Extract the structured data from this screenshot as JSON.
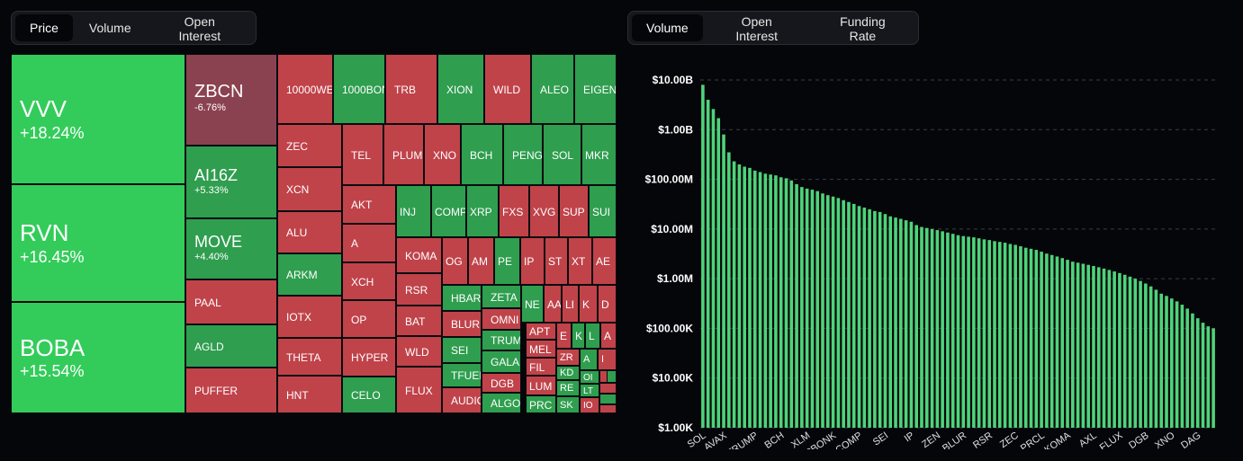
{
  "left_tabs": [
    {
      "label": "Price",
      "active": true
    },
    {
      "label": "Volume",
      "active": false
    },
    {
      "label": "Open Interest",
      "active": false
    }
  ],
  "right_tabs": [
    {
      "label": "Volume",
      "active": true
    },
    {
      "label": "Open Interest",
      "active": false
    },
    {
      "label": "Funding Rate",
      "active": false
    }
  ],
  "colors": {
    "up_bright": "#33cc5a",
    "up": "#2f9e4f",
    "down": "#c0434a",
    "down_muted": "#8b4250",
    "bar": "#4fd37a"
  },
  "chart_data": [
    {
      "type": "treemap",
      "cells": [
        {
          "symbol": "VVV",
          "change": "+18.24%",
          "dir": "up_bright"
        },
        {
          "symbol": "RVN",
          "change": "+16.45%",
          "dir": "up_bright"
        },
        {
          "symbol": "BOBA",
          "change": "+15.54%",
          "dir": "up_bright"
        },
        {
          "symbol": "ZBCN",
          "change": "-6.76%",
          "dir": "down_muted"
        },
        {
          "symbol": "AI16Z",
          "change": "+5.33%",
          "dir": "up"
        },
        {
          "symbol": "MOVE",
          "change": "+4.40%",
          "dir": "up"
        },
        {
          "symbol": "PAAL",
          "dir": "down"
        },
        {
          "symbol": "AGLD",
          "dir": "up"
        },
        {
          "symbol": "PUFFER",
          "dir": "down"
        },
        {
          "symbol": "10000WE",
          "dir": "down"
        },
        {
          "symbol": "1000BON",
          "dir": "up"
        },
        {
          "symbol": "TRB",
          "dir": "down"
        },
        {
          "symbol": "XION",
          "dir": "up"
        },
        {
          "symbol": "WILD",
          "dir": "down"
        },
        {
          "symbol": "ALEO",
          "dir": "up"
        },
        {
          "symbol": "EIGEN",
          "dir": "up"
        },
        {
          "symbol": "ZEC",
          "dir": "down"
        },
        {
          "symbol": "XCN",
          "dir": "down"
        },
        {
          "symbol": "ALU",
          "dir": "down"
        },
        {
          "symbol": "ARKM",
          "dir": "up"
        },
        {
          "symbol": "IOTX",
          "dir": "down"
        },
        {
          "symbol": "THETA",
          "dir": "down"
        },
        {
          "symbol": "HNT",
          "dir": "down"
        },
        {
          "symbol": "TEL",
          "dir": "down"
        },
        {
          "symbol": "PLUME",
          "dir": "down"
        },
        {
          "symbol": "XNO",
          "dir": "down"
        },
        {
          "symbol": "BCH",
          "dir": "up"
        },
        {
          "symbol": "PENG",
          "dir": "up"
        },
        {
          "symbol": "SOL",
          "dir": "up"
        },
        {
          "symbol": "MKR",
          "dir": "up"
        },
        {
          "symbol": "AKT",
          "dir": "down"
        },
        {
          "symbol": "A",
          "dir": "down"
        },
        {
          "symbol": "XCH",
          "dir": "down"
        },
        {
          "symbol": "OP",
          "dir": "down"
        },
        {
          "symbol": "HYPER",
          "dir": "down"
        },
        {
          "symbol": "CELO",
          "dir": "up"
        },
        {
          "symbol": "INJ",
          "dir": "up"
        },
        {
          "symbol": "COMP",
          "dir": "up"
        },
        {
          "symbol": "XRP",
          "dir": "up"
        },
        {
          "symbol": "FXS",
          "dir": "down"
        },
        {
          "symbol": "XVG",
          "dir": "down"
        },
        {
          "symbol": "SUP",
          "dir": "down"
        },
        {
          "symbol": "SUI",
          "dir": "up"
        },
        {
          "symbol": "KOMA",
          "dir": "down"
        },
        {
          "symbol": "OG",
          "dir": "down"
        },
        {
          "symbol": "AM",
          "dir": "down"
        },
        {
          "symbol": "PE",
          "dir": "up"
        },
        {
          "symbol": "IP",
          "dir": "down"
        },
        {
          "symbol": "ST",
          "dir": "down"
        },
        {
          "symbol": "XT",
          "dir": "down"
        },
        {
          "symbol": "AE",
          "dir": "down"
        },
        {
          "symbol": "RSR",
          "dir": "down"
        },
        {
          "symbol": "BAT",
          "dir": "down"
        },
        {
          "symbol": "WLD",
          "dir": "down"
        },
        {
          "symbol": "FLUX",
          "dir": "down"
        },
        {
          "symbol": "HBAR",
          "dir": "up"
        },
        {
          "symbol": "BLUR",
          "dir": "down"
        },
        {
          "symbol": "SEI",
          "dir": "up"
        },
        {
          "symbol": "TFUEL",
          "dir": "up"
        },
        {
          "symbol": "AUDIO",
          "dir": "down"
        },
        {
          "symbol": "ZEN",
          "dir": "down"
        },
        {
          "symbol": "ZETA",
          "dir": "up"
        },
        {
          "symbol": "OMNI",
          "dir": "down"
        },
        {
          "symbol": "TRUMP",
          "dir": "up"
        },
        {
          "symbol": "GALA",
          "dir": "up"
        },
        {
          "symbol": "DGB",
          "dir": "down"
        },
        {
          "symbol": "ALGO",
          "dir": "up"
        },
        {
          "symbol": "NE",
          "dir": "up"
        },
        {
          "symbol": "AA",
          "dir": "down"
        },
        {
          "symbol": "LI",
          "dir": "down"
        },
        {
          "symbol": "K",
          "dir": "down"
        },
        {
          "symbol": "D",
          "dir": "down"
        },
        {
          "symbol": "APT",
          "dir": "down"
        },
        {
          "symbol": "MEL",
          "dir": "down"
        },
        {
          "symbol": "FIL",
          "dir": "down"
        },
        {
          "symbol": "LUM",
          "dir": "down"
        },
        {
          "symbol": "PRC",
          "dir": "up"
        },
        {
          "symbol": "E",
          "dir": "down"
        },
        {
          "symbol": "K",
          "dir": "up"
        },
        {
          "symbol": "L",
          "dir": "up"
        },
        {
          "symbol": "A",
          "dir": "down"
        },
        {
          "symbol": "ZR",
          "dir": "down"
        },
        {
          "symbol": "KD",
          "dir": "up"
        },
        {
          "symbol": "RE",
          "dir": "up"
        },
        {
          "symbol": "SK",
          "dir": "up"
        },
        {
          "symbol": "A",
          "dir": "up"
        },
        {
          "symbol": "I",
          "dir": "down"
        },
        {
          "symbol": "OI",
          "dir": "up"
        },
        {
          "symbol": "LT",
          "dir": "up"
        },
        {
          "symbol": "IO",
          "dir": "down"
        },
        {
          "symbol": "",
          "dir": "down"
        },
        {
          "symbol": "",
          "dir": "down"
        },
        {
          "symbol": "",
          "dir": "up"
        },
        {
          "symbol": "",
          "dir": "down"
        },
        {
          "symbol": "",
          "dir": "up"
        },
        {
          "symbol": "",
          "dir": "down"
        },
        {
          "symbol": "",
          "dir": "up"
        },
        {
          "symbol": "",
          "dir": "down"
        }
      ]
    },
    {
      "type": "bar",
      "scale": "log",
      "ylim": [
        1000,
        10000000000
      ],
      "yticks": [
        {
          "value": 10000000000,
          "label": "$10.00B"
        },
        {
          "value": 1000000000,
          "label": "$1.00B"
        },
        {
          "value": 100000000,
          "label": "$100.00M"
        },
        {
          "value": 10000000,
          "label": "$10.00M"
        },
        {
          "value": 1000000,
          "label": "$1.00M"
        },
        {
          "value": 100000,
          "label": "$100.00K"
        },
        {
          "value": 10000,
          "label": "$10.00K"
        },
        {
          "value": 1000,
          "label": "$1.00K"
        }
      ],
      "xticks": [
        {
          "index": 0,
          "label": "SOL"
        },
        {
          "index": 4,
          "label": "AVAX"
        },
        {
          "index": 10,
          "label": "TRUMP"
        },
        {
          "index": 15,
          "label": "BCH"
        },
        {
          "index": 20,
          "label": "XLM"
        },
        {
          "index": 25,
          "label": "1000BONK"
        },
        {
          "index": 30,
          "label": "COMP"
        },
        {
          "index": 35,
          "label": "SEI"
        },
        {
          "index": 40,
          "label": "IP"
        },
        {
          "index": 45,
          "label": "ZEN"
        },
        {
          "index": 50,
          "label": "BLUR"
        },
        {
          "index": 55,
          "label": "RSR"
        },
        {
          "index": 60,
          "label": "ZEC"
        },
        {
          "index": 65,
          "label": "PRCL"
        },
        {
          "index": 70,
          "label": "KOMA"
        },
        {
          "index": 75,
          "label": "AXL"
        },
        {
          "index": 80,
          "label": "FLUX"
        },
        {
          "index": 85,
          "label": "DGB"
        },
        {
          "index": 90,
          "label": "XNO"
        },
        {
          "index": 95,
          "label": "DAG"
        }
      ],
      "values": [
        8000000000,
        4000000000,
        2600000000,
        1700000000,
        800000000,
        350000000,
        230000000,
        200000000,
        180000000,
        170000000,
        150000000,
        140000000,
        130000000,
        125000000,
        120000000,
        110000000,
        105000000,
        95000000,
        80000000,
        70000000,
        65000000,
        62000000,
        58000000,
        52000000,
        48000000,
        45000000,
        42000000,
        38000000,
        35000000,
        32000000,
        29000000,
        27000000,
        25000000,
        23000000,
        22000000,
        20000000,
        18000000,
        17000000,
        16000000,
        15000000,
        14000000,
        12000000,
        11000000,
        10500000,
        10000000,
        9500000,
        9000000,
        8500000,
        8000000,
        7500000,
        7200000,
        7000000,
        6800000,
        6500000,
        6200000,
        6000000,
        5700000,
        5500000,
        5300000,
        5000000,
        4800000,
        4500000,
        4200000,
        4000000,
        3800000,
        3500000,
        3200000,
        3000000,
        2800000,
        2600000,
        2400000,
        2200000,
        2100000,
        2000000,
        1900000,
        1800000,
        1700000,
        1600000,
        1500000,
        1400000,
        1300000,
        1200000,
        1100000,
        1000000,
        900000,
        800000,
        700000,
        600000,
        500000,
        450000,
        400000,
        350000,
        300000,
        250000,
        200000,
        160000,
        130000,
        110000,
        100000
      ]
    }
  ]
}
